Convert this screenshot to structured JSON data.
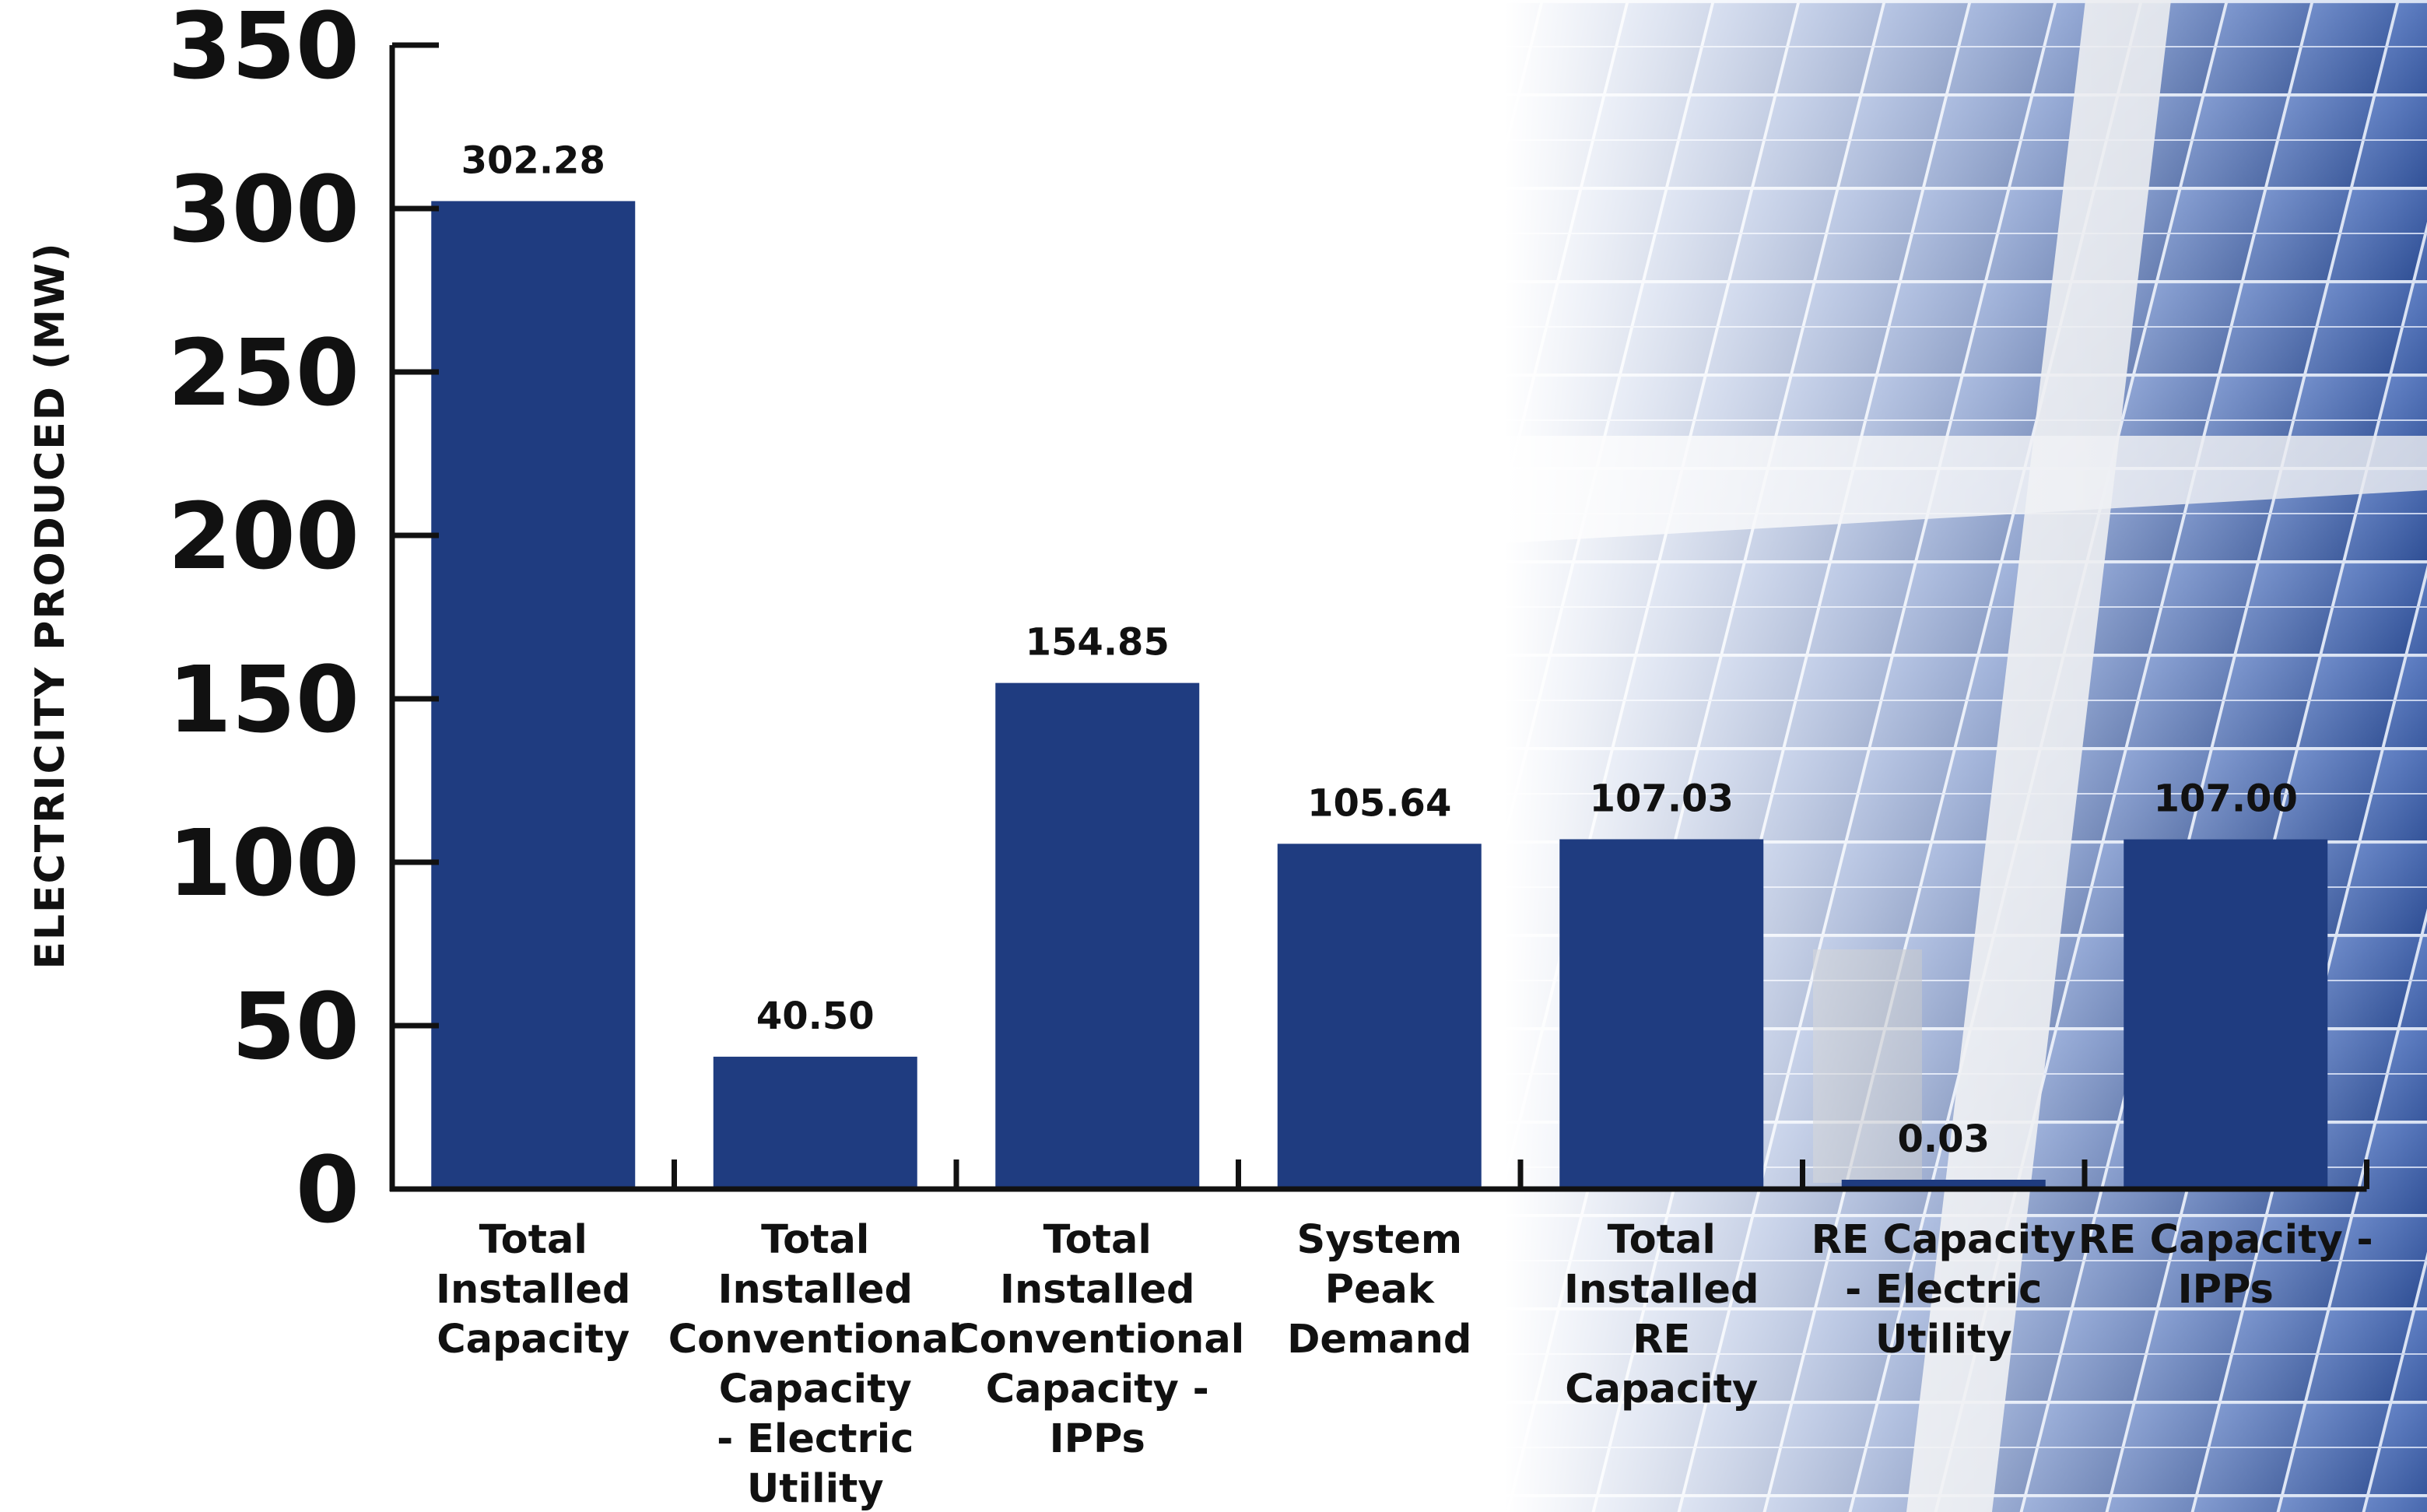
{
  "chart_data": {
    "type": "bar",
    "ylabel": "ELECTRICITY PRODUCED (MW)",
    "ylim": [
      0,
      350
    ],
    "yticks": [
      "0",
      "50",
      "100",
      "150",
      "200",
      "250",
      "300",
      "350"
    ],
    "categories": [
      [
        "Total",
        "Installed",
        "Capacity"
      ],
      [
        "Total",
        "Installed",
        "Conventional",
        "Capacity",
        "- Electric",
        "Utility"
      ],
      [
        "Total",
        "Installed",
        "Conventional",
        "Capacity -",
        "IPPs"
      ],
      [
        "System",
        "Peak",
        "Demand"
      ],
      [
        "Total",
        "Installed",
        "RE",
        "Capacity"
      ],
      [
        "RE Capacity",
        "- Electric",
        "Utility"
      ],
      [
        "RE Capacity -",
        "IPPs"
      ]
    ],
    "values": [
      302.28,
      40.5,
      154.85,
      105.64,
      107.03,
      0.03,
      107.0
    ],
    "value_labels": [
      "302.28",
      "40.50",
      "154.85",
      "105.64",
      "107.03",
      "0.03",
      "107.00"
    ],
    "bar_color": "#1f3c80",
    "axis_color": "#111111",
    "grid": false,
    "background": "solar panel photograph fading into white on the left"
  }
}
